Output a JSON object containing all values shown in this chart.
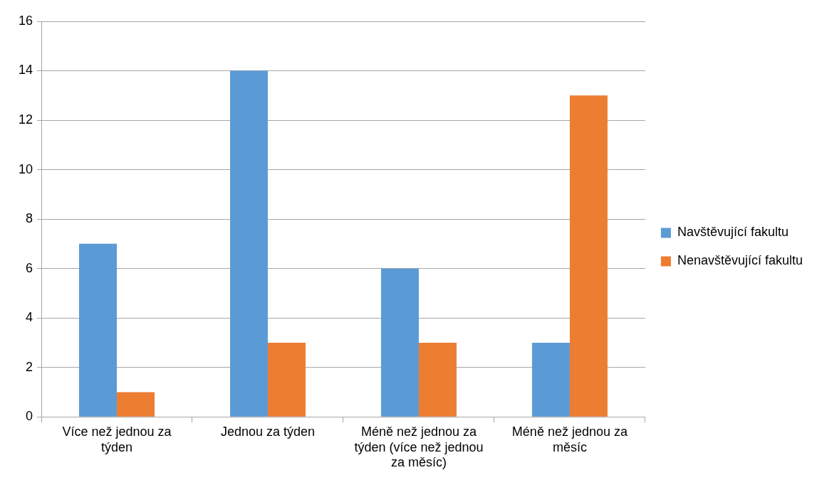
{
  "chart_data": {
    "type": "bar",
    "categories": [
      "Více než jednou za týden",
      "Jednou za týden",
      "Méně než jednou za týden (více než jednou za měsíc)",
      "Méně než jednou za měsíc"
    ],
    "series": [
      {
        "name": "Navštěvující fakultu",
        "color": "#5b9bd5",
        "values": [
          7,
          14,
          6,
          3
        ]
      },
      {
        "name": "Nenavštěvující fakultu",
        "color": "#ed7d31",
        "values": [
          1,
          3,
          3,
          13
        ]
      }
    ],
    "ylim": [
      0,
      16
    ],
    "yticks": [
      0,
      2,
      4,
      6,
      8,
      10,
      12,
      14,
      16
    ],
    "grid": "y",
    "legend": "right"
  }
}
